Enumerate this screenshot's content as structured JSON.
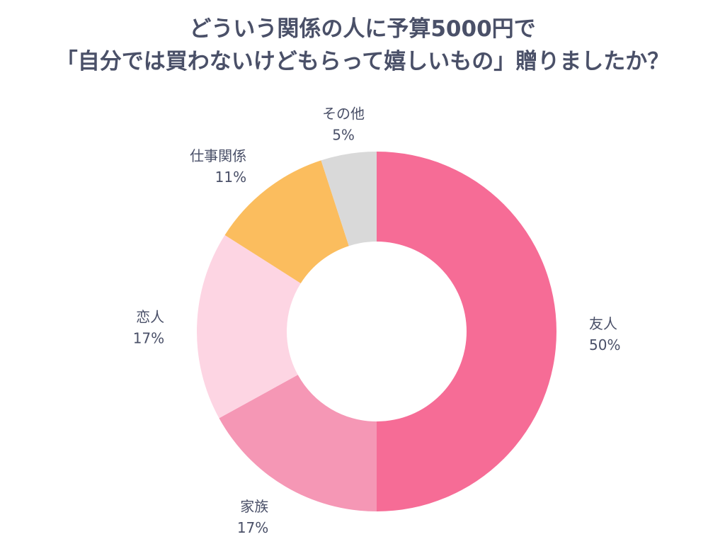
{
  "chart_data": {
    "type": "pie",
    "variant": "donut",
    "title_lines": [
      "どういう関係の人に予算5000円で",
      "「自分では買わないけどもらって嬉しいもの」贈りましたか？"
    ],
    "categories": [
      "友人",
      "家族",
      "恋人",
      "仕事関係",
      "その他"
    ],
    "values": [
      50,
      17,
      17,
      11,
      5
    ],
    "value_labels": [
      "50%",
      "17%",
      "17%",
      "11%",
      "5%"
    ],
    "colors": [
      "#f66c96",
      "#f597b5",
      "#fdd5e3",
      "#fbbd5e",
      "#d9d9d9"
    ],
    "start_direction": "top, clockwise",
    "legend": "none (labels outside slices)"
  }
}
